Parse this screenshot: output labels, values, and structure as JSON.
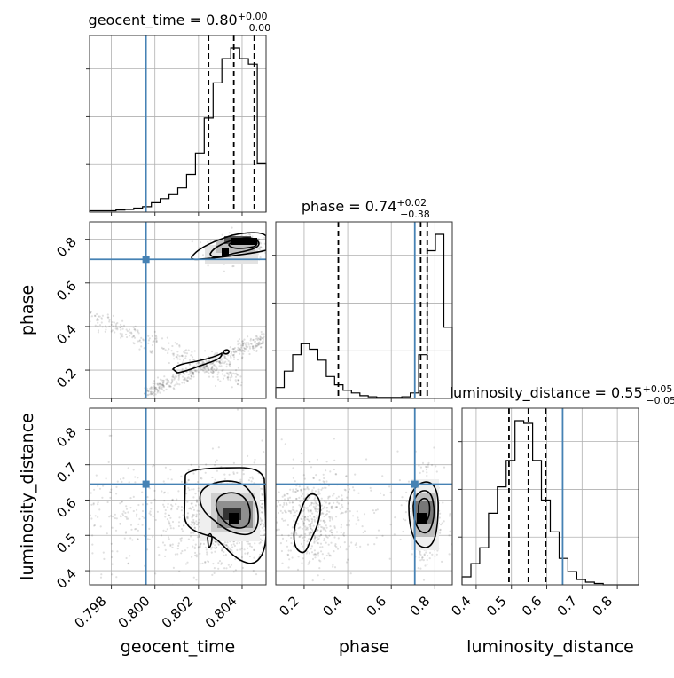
{
  "chart_data": {
    "type": "corner",
    "parameters": [
      "geocent_time",
      "phase",
      "luminosity_distance"
    ],
    "axis_labels": {
      "x": [
        "geocent_time",
        "phase",
        "luminosity_distance"
      ],
      "y": [
        "phase",
        "luminosity_distance"
      ]
    },
    "ranges": {
      "geocent_time": [
        0.797,
        0.8051
      ],
      "phase": [
        0.07,
        0.88
      ],
      "luminosity_distance": [
        0.36,
        0.86
      ]
    },
    "ticks": {
      "geocent_time": [
        "0.798",
        "0.800",
        "0.802",
        "0.804"
      ],
      "phase": [
        "0.2",
        "0.4",
        "0.6",
        "0.8"
      ],
      "luminosity_distance": [
        "0.4",
        "0.5",
        "0.6",
        "0.7",
        "0.8"
      ]
    },
    "tick_values": {
      "geocent_time": [
        0.798,
        0.8,
        0.802,
        0.804
      ],
      "phase": [
        0.2,
        0.4,
        0.6,
        0.8
      ],
      "luminosity_distance": [
        0.4,
        0.5,
        0.6,
        0.7,
        0.8
      ]
    },
    "titles": [
      {
        "param": "geocent_time",
        "text": "geocent_time = 0.80",
        "upper": "+0.00",
        "lower": "−0.00"
      },
      {
        "param": "phase",
        "text": "phase = 0.74",
        "upper": "+0.02",
        "lower": "−0.38"
      },
      {
        "param": "luminosity_distance",
        "text": "luminosity_distance = 0.55",
        "upper": "+0.05",
        "lower": "−0.05"
      }
    ],
    "truths": {
      "geocent_time": 0.79959,
      "phase": 0.708,
      "luminosity_distance": 0.645
    },
    "quantiles": {
      "geocent_time": [
        0.80246,
        0.80362,
        0.80456
      ],
      "phase": [
        0.357,
        0.735,
        0.765
      ],
      "luminosity_distance": [
        0.493,
        0.548,
        0.597
      ]
    },
    "histograms": {
      "geocent_time": {
        "edges_range": [
          0.797,
          0.8051
        ],
        "counts": [
          0.5,
          0.5,
          0.5,
          0.8,
          1,
          1.5,
          2,
          3.5,
          5,
          6.5,
          9,
          14,
          22,
          35,
          48,
          57,
          61,
          57,
          55,
          18
        ]
      },
      "phase": {
        "edges_range": [
          0.07,
          0.88
        ],
        "counts": [
          2,
          5,
          8,
          10,
          9,
          7,
          4,
          2.5,
          1.5,
          1,
          0.5,
          0.3,
          0.2,
          0.2,
          0.2,
          0.3,
          1,
          8,
          27,
          30,
          13
        ]
      },
      "luminosity_distance": {
        "edges_range": [
          0.36,
          0.86
        ],
        "counts": [
          3,
          8,
          14,
          27,
          37,
          47,
          62,
          61,
          47,
          32,
          20,
          10,
          5,
          2,
          1,
          0.5,
          0,
          0,
          0,
          0
        ]
      }
    },
    "grid": true
  }
}
